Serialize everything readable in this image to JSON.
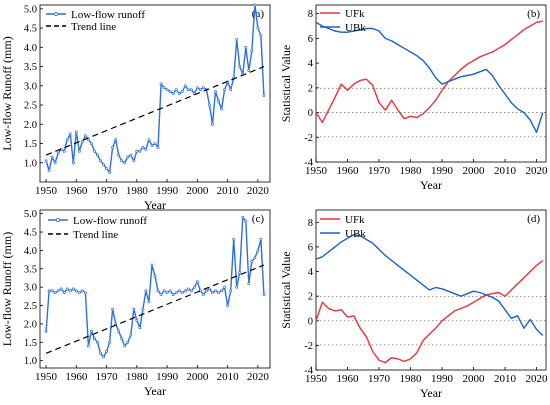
{
  "figure": {
    "panels": [
      {
        "panel_label": "(a)",
        "legend": [
          "Low-flow runoff",
          "Trend line"
        ]
      },
      {
        "panel_label": "(b)",
        "legend": [
          "UFk",
          "UBk"
        ]
      },
      {
        "panel_label": "(c)",
        "legend": [
          "Low-flow runoff",
          "Trend line"
        ]
      },
      {
        "panel_label": "(d)",
        "legend": [
          "UFk",
          "UBk"
        ]
      }
    ]
  },
  "colors": {
    "runoff": "#2E6FD8",
    "trend": "#000000",
    "ufk": "#E8333A",
    "ubk": "#1F5FC8",
    "refline": "#777777"
  },
  "chart_data": [
    {
      "type": "line",
      "panel": "(a)",
      "xlabel": "Year",
      "ylabel": "Low-flow Runoff (mm)",
      "xlim": [
        1948,
        2024
      ],
      "ylim": [
        0.5,
        5.1
      ],
      "xticks": [
        1950,
        1960,
        1970,
        1980,
        1990,
        2000,
        2010,
        2020
      ],
      "yticks": [
        1.0,
        1.5,
        2.0,
        2.5,
        3.0,
        3.5,
        4.0,
        4.5,
        5.0
      ],
      "series": [
        {
          "name": "Low-flow runoff",
          "style": "line-markers",
          "x": [
            1950,
            1951,
            1952,
            1953,
            1954,
            1955,
            1956,
            1957,
            1958,
            1959,
            1960,
            1961,
            1962,
            1963,
            1964,
            1965,
            1966,
            1967,
            1968,
            1969,
            1970,
            1971,
            1972,
            1973,
            1974,
            1975,
            1976,
            1977,
            1978,
            1979,
            1980,
            1981,
            1982,
            1983,
            1984,
            1985,
            1986,
            1987,
            1988,
            1989,
            1990,
            1991,
            1992,
            1993,
            1994,
            1995,
            1996,
            1997,
            1998,
            1999,
            2000,
            2001,
            2002,
            2003,
            2004,
            2005,
            2006,
            2007,
            2008,
            2009,
            2010,
            2011,
            2012,
            2013,
            2014,
            2015,
            2016,
            2017,
            2018,
            2019,
            2020,
            2021,
            2022
          ],
          "y": [
            1.05,
            0.8,
            1.15,
            1.0,
            1.25,
            1.35,
            1.3,
            1.6,
            1.75,
            1.0,
            1.8,
            1.3,
            1.55,
            1.7,
            1.6,
            1.5,
            1.3,
            1.2,
            1.05,
            0.95,
            0.85,
            0.75,
            1.4,
            1.6,
            1.2,
            1.05,
            1.0,
            1.15,
            1.2,
            1.05,
            1.3,
            1.3,
            1.4,
            1.35,
            1.6,
            1.45,
            1.5,
            1.4,
            3.05,
            2.95,
            2.9,
            2.85,
            2.8,
            2.9,
            2.8,
            2.85,
            3.0,
            2.9,
            2.9,
            2.8,
            2.95,
            2.9,
            2.95,
            2.9,
            2.5,
            2.0,
            2.85,
            2.6,
            2.4,
            2.9,
            3.1,
            2.9,
            3.2,
            4.2,
            3.5,
            3.3,
            4.0,
            3.4,
            3.9,
            5.1,
            4.5,
            4.3,
            2.75
          ]
        },
        {
          "name": "Trend line",
          "style": "dashed",
          "x": [
            1950,
            2022
          ],
          "y": [
            1.2,
            3.5
          ]
        }
      ]
    },
    {
      "type": "line",
      "panel": "(b)",
      "xlabel": "Year",
      "ylabel": "Statistical Value",
      "xlim": [
        1950,
        2023
      ],
      "ylim": [
        -4,
        8.7
      ],
      "xticks": [
        1950,
        1960,
        1970,
        1980,
        1990,
        2000,
        2010,
        2020
      ],
      "yticks": [
        -4,
        -2,
        0,
        2,
        4,
        6,
        8
      ],
      "reference_lines": [
        -1.96,
        0,
        1.96
      ],
      "series": [
        {
          "name": "UFk",
          "x": [
            1950,
            1952,
            1954,
            1956,
            1958,
            1960,
            1962,
            1964,
            1966,
            1968,
            1970,
            1972,
            1974,
            1976,
            1978,
            1980,
            1982,
            1984,
            1986,
            1988,
            1990,
            1992,
            1994,
            1996,
            1998,
            2000,
            2002,
            2004,
            2006,
            2008,
            2010,
            2012,
            2014,
            2016,
            2018,
            2020,
            2022
          ],
          "y": [
            0,
            -0.8,
            0.2,
            1.2,
            2.3,
            1.8,
            2.3,
            2.6,
            2.7,
            2.2,
            0.8,
            0.2,
            1.0,
            0.2,
            -0.5,
            -0.3,
            -0.4,
            -0.1,
            0.4,
            1.0,
            1.8,
            2.5,
            3.0,
            3.5,
            3.9,
            4.2,
            4.5,
            4.7,
            4.9,
            5.2,
            5.5,
            5.9,
            6.3,
            6.7,
            7.0,
            7.3,
            7.4
          ]
        },
        {
          "name": "UBk",
          "x": [
            1950,
            1952,
            1954,
            1956,
            1958,
            1960,
            1962,
            1964,
            1966,
            1968,
            1970,
            1972,
            1974,
            1976,
            1978,
            1980,
            1982,
            1984,
            1986,
            1988,
            1990,
            1992,
            1994,
            1996,
            1998,
            2000,
            2002,
            2004,
            2006,
            2008,
            2010,
            2012,
            2014,
            2016,
            2018,
            2020,
            2022
          ],
          "y": [
            7.3,
            7.0,
            6.8,
            6.6,
            6.5,
            6.5,
            6.6,
            6.7,
            6.8,
            6.8,
            6.6,
            6.0,
            5.8,
            5.5,
            5.2,
            4.9,
            4.6,
            4.2,
            3.6,
            2.8,
            2.3,
            2.5,
            2.7,
            2.9,
            3.0,
            3.1,
            3.3,
            3.5,
            3.0,
            2.2,
            1.5,
            0.8,
            0.3,
            0.0,
            -0.6,
            -1.6,
            0.0
          ]
        }
      ]
    },
    {
      "type": "line",
      "panel": "(c)",
      "xlabel": "Year",
      "ylabel": "Low-flow Runoff (mm)",
      "xlim": [
        1948,
        2024
      ],
      "ylim": [
        0.8,
        5.1
      ],
      "xticks": [
        1950,
        1960,
        1970,
        1980,
        1990,
        2000,
        2010,
        2020
      ],
      "yticks": [
        1.0,
        1.5,
        2.0,
        2.5,
        3.0,
        3.5,
        4.0,
        4.5,
        5.0
      ],
      "series": [
        {
          "name": "Low-flow runoff",
          "style": "line-markers",
          "x": [
            1950,
            1951,
            1952,
            1953,
            1954,
            1955,
            1956,
            1957,
            1958,
            1959,
            1960,
            1961,
            1962,
            1963,
            1964,
            1965,
            1966,
            1967,
            1968,
            1969,
            1970,
            1971,
            1972,
            1973,
            1974,
            1975,
            1976,
            1977,
            1978,
            1979,
            1980,
            1981,
            1982,
            1983,
            1984,
            1985,
            1986,
            1987,
            1988,
            1989,
            1990,
            1991,
            1992,
            1993,
            1994,
            1995,
            1996,
            1997,
            1998,
            1999,
            2000,
            2001,
            2002,
            2003,
            2004,
            2005,
            2006,
            2007,
            2008,
            2009,
            2010,
            2011,
            2012,
            2013,
            2014,
            2015,
            2016,
            2017,
            2018,
            2019,
            2020,
            2021,
            2022
          ],
          "y": [
            1.8,
            2.9,
            2.9,
            2.85,
            2.9,
            2.95,
            2.85,
            2.95,
            2.9,
            2.95,
            2.9,
            2.85,
            2.9,
            2.85,
            1.4,
            1.8,
            1.6,
            1.5,
            1.2,
            1.1,
            1.25,
            1.5,
            2.4,
            2.0,
            1.8,
            1.6,
            1.4,
            1.5,
            1.7,
            2.4,
            2.1,
            1.9,
            2.4,
            2.9,
            2.6,
            3.6,
            3.3,
            2.9,
            2.8,
            2.9,
            2.85,
            2.9,
            2.8,
            2.85,
            2.9,
            2.85,
            2.9,
            2.95,
            2.9,
            3.0,
            3.15,
            2.9,
            2.8,
            2.9,
            2.95,
            2.85,
            2.9,
            2.85,
            2.9,
            3.0,
            2.5,
            2.9,
            4.3,
            3.0,
            3.4,
            4.9,
            4.8,
            3.1,
            3.7,
            3.8,
            4.0,
            4.3,
            2.8
          ]
        },
        {
          "name": "Trend line",
          "style": "dashed",
          "x": [
            1950,
            2022
          ],
          "y": [
            1.2,
            3.6
          ]
        }
      ]
    },
    {
      "type": "line",
      "panel": "(d)",
      "xlabel": "Year",
      "ylabel": "Statistical Value",
      "xlim": [
        1950,
        2023
      ],
      "ylim": [
        -4,
        9
      ],
      "xticks": [
        1950,
        1960,
        1970,
        1980,
        1990,
        2000,
        2010,
        2020
      ],
      "yticks": [
        -4,
        -2,
        0,
        2,
        4,
        6,
        8
      ],
      "reference_lines": [
        -1.96,
        0,
        1.96
      ],
      "series": [
        {
          "name": "UFk",
          "x": [
            1950,
            1952,
            1954,
            1956,
            1958,
            1960,
            1962,
            1964,
            1966,
            1968,
            1970,
            1972,
            1974,
            1976,
            1978,
            1980,
            1982,
            1984,
            1986,
            1988,
            1990,
            1992,
            1994,
            1996,
            1998,
            2000,
            2002,
            2004,
            2006,
            2008,
            2010,
            2012,
            2014,
            2016,
            2018,
            2020,
            2022
          ],
          "y": [
            0,
            1.5,
            1.0,
            0.8,
            0.9,
            0.3,
            0.4,
            -0.6,
            -1.3,
            -2.5,
            -3.2,
            -3.4,
            -3.0,
            -3.1,
            -3.3,
            -3.1,
            -2.6,
            -1.6,
            -1.1,
            -0.6,
            0.0,
            0.4,
            0.8,
            1.0,
            1.2,
            1.5,
            1.8,
            2.1,
            2.2,
            2.3,
            2.0,
            2.5,
            3.0,
            3.5,
            4.0,
            4.5,
            4.9
          ]
        },
        {
          "name": "UBk",
          "x": [
            1950,
            1952,
            1954,
            1956,
            1958,
            1960,
            1962,
            1964,
            1966,
            1968,
            1970,
            1972,
            1974,
            1976,
            1978,
            1980,
            1982,
            1984,
            1986,
            1988,
            1990,
            1992,
            1994,
            1996,
            1998,
            2000,
            2002,
            2004,
            2006,
            2008,
            2010,
            2012,
            2014,
            2016,
            2018,
            2020,
            2022
          ],
          "y": [
            5.0,
            5.2,
            5.6,
            6.0,
            6.4,
            6.7,
            7.0,
            6.9,
            6.6,
            6.3,
            5.8,
            5.3,
            4.9,
            4.5,
            4.1,
            3.7,
            3.3,
            2.9,
            2.5,
            2.7,
            2.6,
            2.4,
            2.2,
            2.0,
            2.2,
            2.4,
            2.3,
            2.1,
            1.9,
            1.6,
            0.9,
            0.2,
            0.4,
            -0.6,
            0.1,
            -0.7,
            -1.2
          ]
        }
      ]
    }
  ]
}
